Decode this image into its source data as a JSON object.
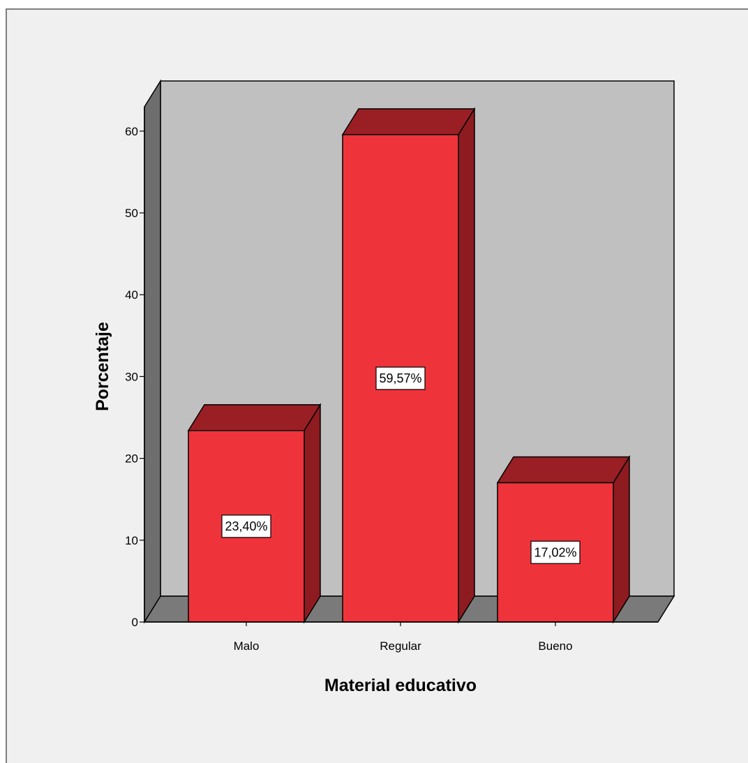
{
  "chart_data": {
    "type": "bar",
    "style": "3d",
    "categories": [
      "Malo",
      "Regular",
      "Bueno"
    ],
    "values": [
      23.4,
      59.57,
      17.02
    ],
    "data_labels": [
      "23,40%",
      "59,57%",
      "17,02%"
    ],
    "xlabel": "Material educativo",
    "ylabel": "Porcentaje",
    "ylim": [
      0,
      60
    ],
    "yticks": [
      0,
      10,
      20,
      30,
      40,
      50,
      60
    ],
    "grid": false,
    "legend": "none",
    "colors": {
      "bar_front": "#ef333b",
      "bar_top": "#9a1f24",
      "bar_side": "#8e1b20",
      "back_wall": "#c0c0c0",
      "side_wall": "#6e6e6e",
      "floor": "#7a7a7a",
      "frame_bg": "#f0f0f0"
    }
  }
}
